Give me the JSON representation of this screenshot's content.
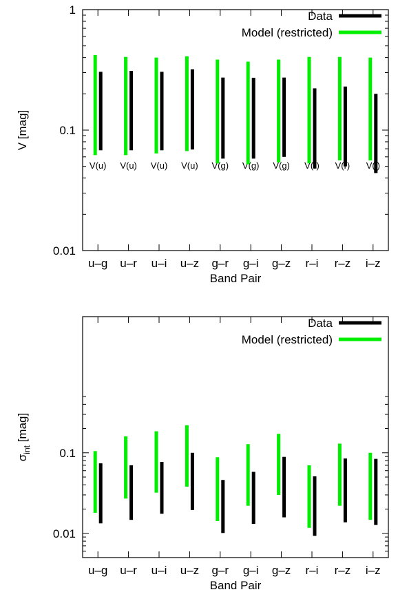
{
  "chart_data": [
    {
      "type": "range-bar",
      "yscale": "log",
      "ylim": [
        0.01,
        1
      ],
      "ylabel": "V [mag]",
      "xlabel": "Band Pair",
      "yticks": [
        "0.01",
        "0.1",
        "1"
      ],
      "categories": [
        "u–g",
        "u–r",
        "u–i",
        "u–z",
        "g–r",
        "g–i",
        "g–z",
        "r–i",
        "r–z",
        "i–z"
      ],
      "annotations": [
        "V(u)",
        "V(u)",
        "V(u)",
        "V(u)",
        "V(g)",
        "V(g)",
        "V(g)",
        "V(r)",
        "V(r)",
        "V(i)"
      ],
      "legend_position": "top-right",
      "series": [
        {
          "name": "Data",
          "color": "#000000",
          "low": [
            0.068,
            0.068,
            0.068,
            0.069,
            0.058,
            0.058,
            0.06,
            0.048,
            0.05,
            0.044
          ],
          "high": [
            0.305,
            0.31,
            0.305,
            0.32,
            0.273,
            0.272,
            0.273,
            0.222,
            0.23,
            0.2
          ]
        },
        {
          "name": "Model (restricted)",
          "color": "#00ee00",
          "low": [
            0.062,
            0.062,
            0.064,
            0.067,
            0.053,
            0.052,
            0.054,
            0.053,
            0.056,
            0.056
          ],
          "high": [
            0.42,
            0.405,
            0.4,
            0.41,
            0.385,
            0.37,
            0.385,
            0.405,
            0.405,
            0.4
          ]
        }
      ]
    },
    {
      "type": "range-bar",
      "yscale": "log",
      "ylim": [
        0.005,
        0.5
      ],
      "ylabel": "σint [mag]",
      "ylabel_main": "σ",
      "ylabel_sub": "int",
      "ylabel_unit": " [mag]",
      "xlabel": "Band Pair",
      "yticks": [
        "0.01",
        "0.1"
      ],
      "categories": [
        "u–g",
        "u–r",
        "u–i",
        "u–z",
        "g–r",
        "g–i",
        "g–z",
        "r–i",
        "r–z",
        "i–z"
      ],
      "legend_position": "top-right",
      "series": [
        {
          "name": "Data",
          "color": "#000000",
          "low": [
            0.0133,
            0.0147,
            0.0175,
            0.0195,
            0.0101,
            0.0131,
            0.0158,
            0.0093,
            0.0137,
            0.0127
          ],
          "high": [
            0.074,
            0.07,
            0.077,
            0.1,
            0.046,
            0.058,
            0.089,
            0.051,
            0.085,
            0.084
          ]
        },
        {
          "name": "Model (restricted)",
          "color": "#00ee00",
          "low": [
            0.018,
            0.027,
            0.032,
            0.038,
            0.0142,
            0.022,
            0.03,
            0.0117,
            0.022,
            0.0147
          ],
          "high": [
            0.105,
            0.16,
            0.185,
            0.22,
            0.088,
            0.128,
            0.172,
            0.07,
            0.13,
            0.1
          ]
        }
      ]
    }
  ]
}
